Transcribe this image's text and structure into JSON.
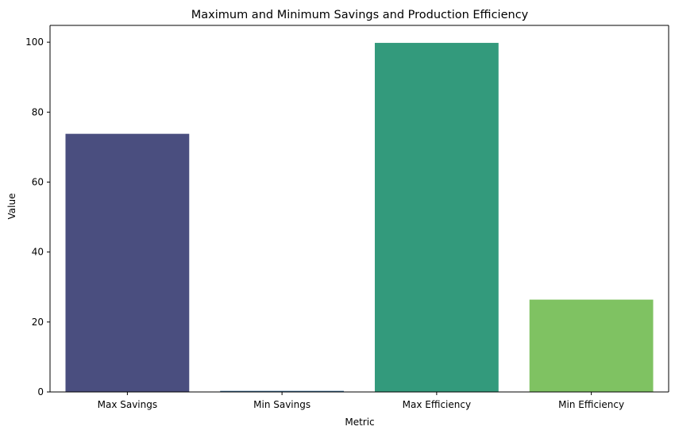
{
  "chart_data": {
    "type": "bar",
    "title": "Maximum and Minimum Savings and Production Efficiency",
    "xlabel": "Metric",
    "ylabel": "Value",
    "categories": [
      "Max Savings",
      "Min Savings",
      "Max Efficiency",
      "Min Efficiency"
    ],
    "values": [
      73.8,
      0.3,
      99.8,
      26.4
    ],
    "colors": [
      "#482878",
      "#2c728e",
      "#28ae80",
      "#90d743"
    ],
    "display_colors": [
      "#4a4e7f",
      "#2e5f8a",
      "#339a7c",
      "#7fc262"
    ],
    "ylim": [
      0,
      104.8
    ],
    "yticks": [
      0,
      20,
      40,
      60,
      80,
      100
    ],
    "grid": false,
    "legend": "none"
  }
}
